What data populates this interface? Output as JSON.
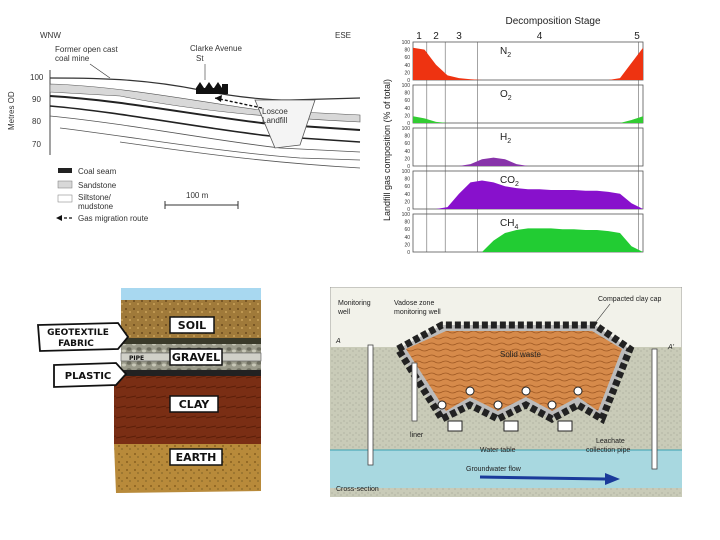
{
  "geology": {
    "dir_left": "WNW",
    "dir_right": "ESE",
    "label_former": "Former open cast",
    "label_former2": "coal mine",
    "label_clarke": "Clarke Avenue",
    "label_clarke2": "St",
    "label_loscoe": "Loscoe",
    "label_landfill": "Landfill",
    "y_axis_label": "Metres OD",
    "y_ticks": [
      "100",
      "90",
      "80",
      "70"
    ],
    "legend": [
      "Coal seam",
      "Sandstone",
      "Siltstone/",
      "mudstone",
      "Gas migration route"
    ],
    "scale_label": "100 m"
  },
  "chart_data": {
    "type": "area",
    "title": "Decomposition Stage",
    "stages": [
      "1",
      "2",
      "3",
      "4",
      "5"
    ],
    "ylabel": "Landfill gas composition (% of total)",
    "ylim": [
      0,
      100
    ],
    "yticks": [
      "100",
      "80",
      "60",
      "40",
      "20",
      "0"
    ],
    "x": [
      0,
      0.05,
      0.1,
      0.15,
      0.2,
      0.25,
      0.3,
      0.35,
      0.4,
      0.45,
      0.5,
      0.55,
      0.6,
      0.65,
      0.7,
      0.75,
      0.8,
      0.85,
      0.9,
      0.95,
      1.0
    ],
    "series": [
      {
        "name": "N2",
        "sub": "2",
        "base": "N",
        "color": "#ee3311",
        "values": [
          85,
          80,
          40,
          12,
          5,
          2,
          0,
          0,
          0,
          0,
          0,
          0,
          0,
          0,
          0,
          0,
          0,
          0,
          5,
          45,
          85
        ]
      },
      {
        "name": "O2",
        "sub": "2",
        "base": "O",
        "color": "#33cc33",
        "values": [
          18,
          12,
          3,
          0,
          0,
          0,
          0,
          0,
          0,
          0,
          0,
          0,
          0,
          0,
          0,
          0,
          0,
          0,
          0,
          8,
          18
        ]
      },
      {
        "name": "H2",
        "sub": "2",
        "base": "H",
        "color": "#8833aa",
        "values": [
          0,
          0,
          0,
          0,
          0,
          5,
          18,
          22,
          18,
          5,
          0,
          0,
          0,
          0,
          0,
          0,
          0,
          0,
          0,
          0,
          0
        ]
      },
      {
        "name": "CO2",
        "sub": "2",
        "base": "CO",
        "color": "#8811cc",
        "values": [
          0,
          0,
          0,
          5,
          40,
          70,
          75,
          70,
          60,
          55,
          52,
          52,
          50,
          50,
          50,
          48,
          48,
          45,
          40,
          15,
          0
        ]
      },
      {
        "name": "CH4",
        "sub": "4",
        "base": "CH",
        "color": "#22cc33",
        "values": [
          0,
          0,
          0,
          0,
          0,
          0,
          0,
          30,
          50,
          58,
          62,
          62,
          62,
          60,
          60,
          58,
          58,
          55,
          50,
          15,
          0
        ]
      }
    ]
  },
  "liner": {
    "soil": "SOIL",
    "gravel": "GRAVEL",
    "pipe": "PIPE",
    "clay": "CLAY",
    "earth": "EARTH",
    "geotextile1": "GEOTEXTILE",
    "geotextile2": "FABRIC",
    "plastic": "PLASTIC"
  },
  "cross_section": {
    "monitoring_well": "Monitoring",
    "monitoring_well2": "well",
    "vadose1": "Vadose zone",
    "vadose2": "monitoring well",
    "clay_cap": "Compacted clay cap",
    "solid_waste": "Solid waste",
    "liner": "liner",
    "water_table": "Water table",
    "leachate1": "Leachate",
    "leachate2": "collection pipe",
    "groundwater": "Groundwater flow",
    "caption": "Cross-section",
    "marker_a": "A",
    "marker_a2": "A'"
  }
}
